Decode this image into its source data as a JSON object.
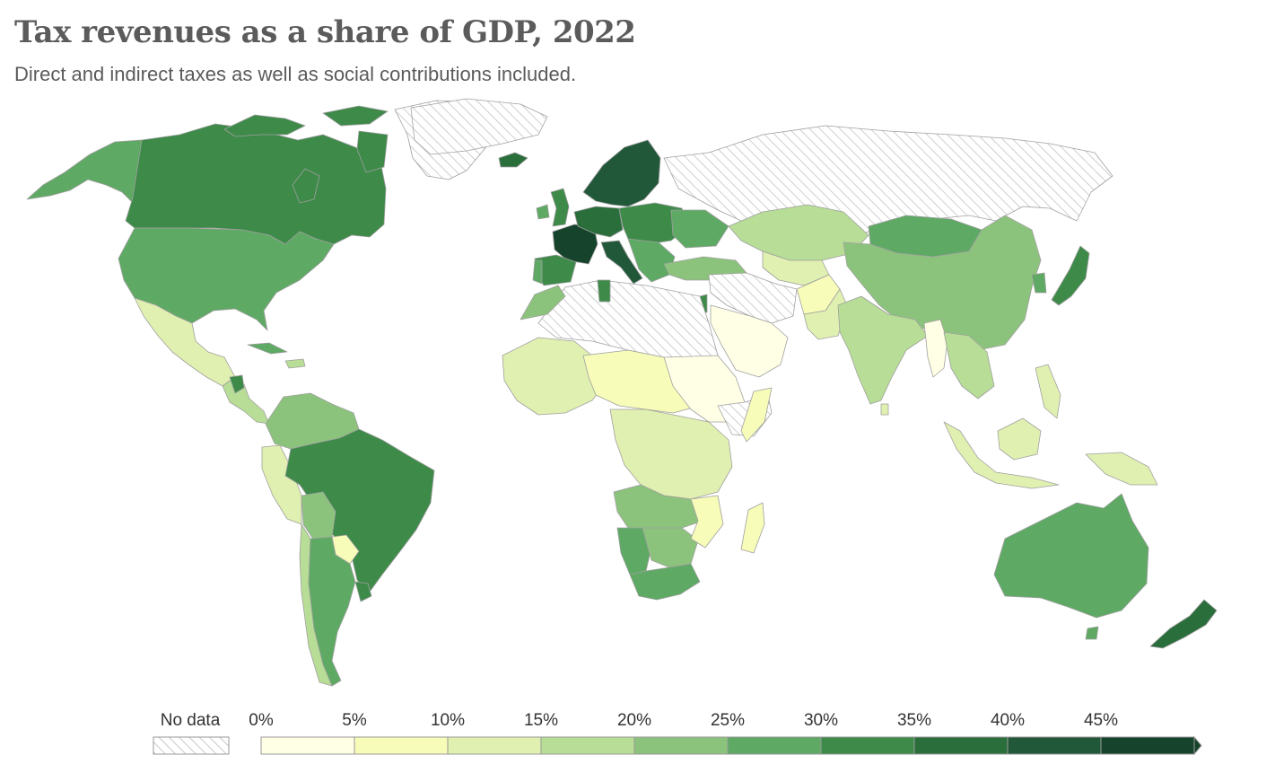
{
  "title": "Tax revenues as a share of GDP, 2022",
  "subtitle": "Direct and indirect taxes as well as social contributions included.",
  "legend": {
    "no_data_label": "No data",
    "tick_labels": [
      "0%",
      "5%",
      "10%",
      "15%",
      "20%",
      "25%",
      "30%",
      "35%",
      "40%",
      "45%"
    ],
    "bins": [
      {
        "min": 0,
        "max": 5,
        "color": "#ffffe5"
      },
      {
        "min": 5,
        "max": 10,
        "color": "#f7fcb9"
      },
      {
        "min": 10,
        "max": 15,
        "color": "#e0f0b0"
      },
      {
        "min": 15,
        "max": 20,
        "color": "#b7dd96"
      },
      {
        "min": 20,
        "max": 25,
        "color": "#8cc37c"
      },
      {
        "min": 25,
        "max": 30,
        "color": "#5ea964"
      },
      {
        "min": 30,
        "max": 35,
        "color": "#3d8a49"
      },
      {
        "min": 35,
        "max": 40,
        "color": "#2a6e3c"
      },
      {
        "min": 40,
        "max": 45,
        "color": "#22583a"
      },
      {
        "min": 45,
        "max": 50,
        "color": "#16432c"
      }
    ],
    "no_data_color": "#ffffff"
  }
}
